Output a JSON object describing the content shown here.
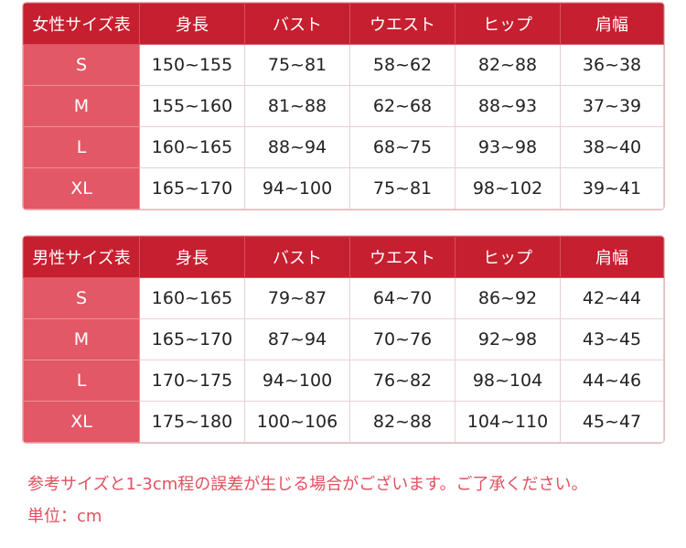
{
  "tables": [
    {
      "header": [
        "女性サイズ表",
        "身長",
        "バスト",
        "ウエスト",
        "ヒップ",
        "肩幅"
      ],
      "rows": [
        [
          "S",
          "150~155",
          "75~81",
          "58~62",
          "82~88",
          "36~38"
        ],
        [
          "M",
          "155~160",
          "81~88",
          "62~68",
          "88~93",
          "37~39"
        ],
        [
          "L",
          "160~165",
          "88~94",
          "68~75",
          "93~98",
          "38~40"
        ],
        [
          "XL",
          "165~170",
          "94~100",
          "75~81",
          "98~102",
          "39~41"
        ]
      ]
    },
    {
      "header": [
        "男性サイズ表",
        "身長",
        "バスト",
        "ウエスト",
        "ヒップ",
        "肩幅"
      ],
      "rows": [
        [
          "S",
          "160~165",
          "79~87",
          "64~70",
          "86~92",
          "42~44"
        ],
        [
          "M",
          "165~170",
          "87~94",
          "70~76",
          "92~98",
          "43~45"
        ],
        [
          "L",
          "170~175",
          "94~100",
          "76~82",
          "98~104",
          "44~46"
        ],
        [
          "XL",
          "175~180",
          "100~106",
          "82~88",
          "104~110",
          "45~47"
        ]
      ]
    }
  ],
  "notes": {
    "disclaimer": "参考サイズと1-3cm程の誤差が生じる場合がございます。ご了承ください。",
    "unit": "単位：cm"
  },
  "colors": {
    "header": "#c61f30",
    "size_column": "#e25866",
    "note_text": "#e0505f"
  }
}
